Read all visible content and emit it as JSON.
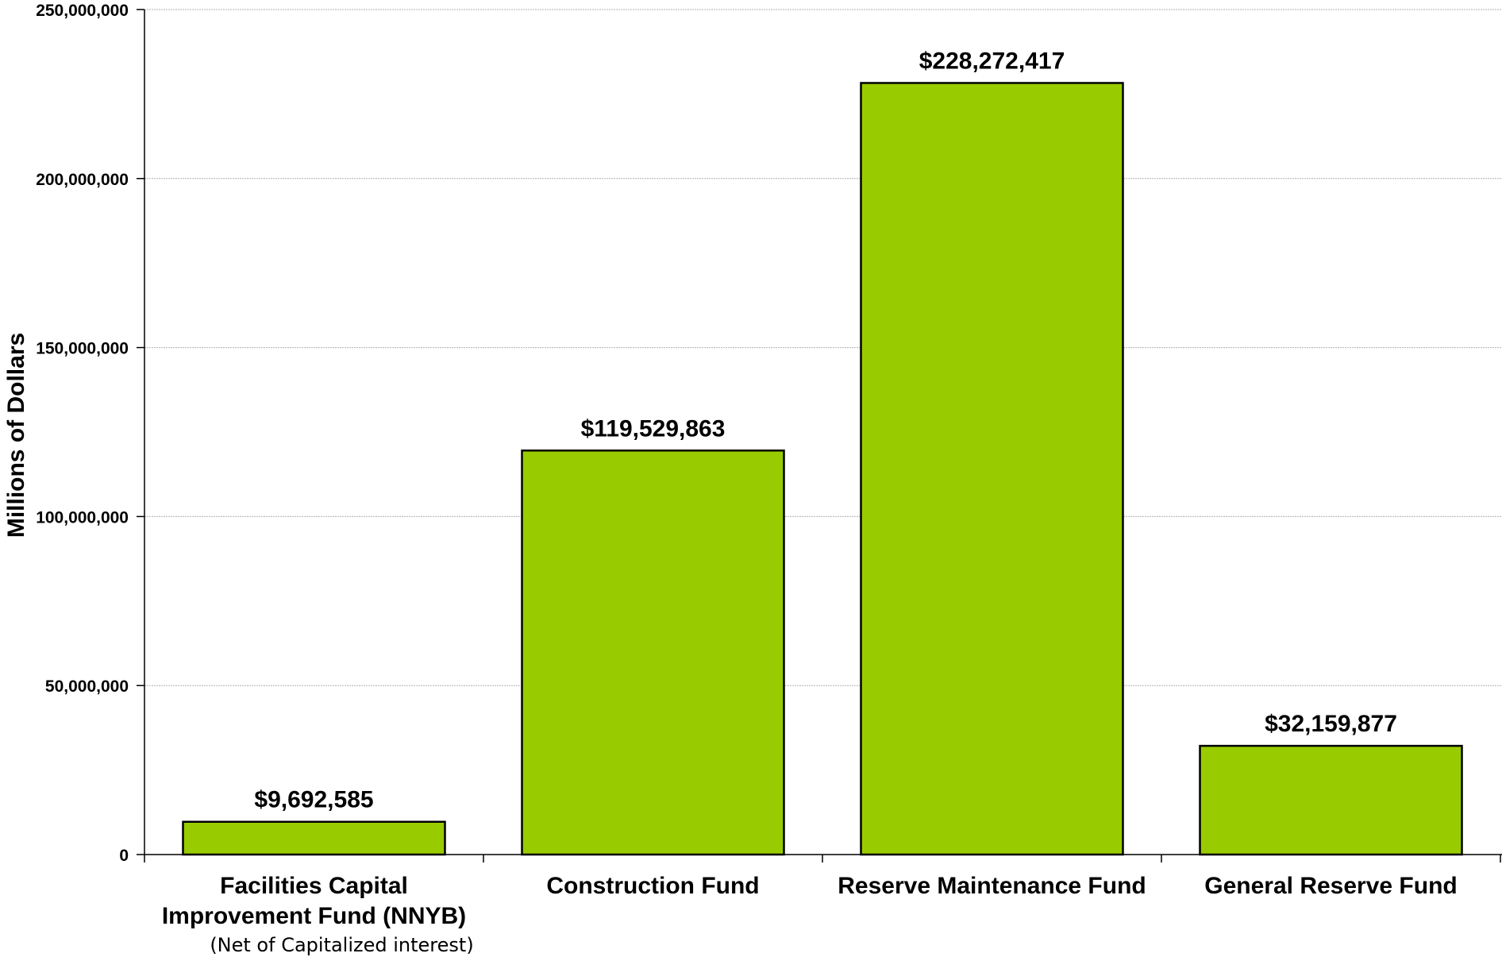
{
  "chart_data": {
    "type": "bar",
    "categories": [
      [
        "Facilities Capital",
        "Improvement Fund (NNYB)"
      ],
      [
        "Construction Fund"
      ],
      [
        "Reserve Maintenance Fund"
      ],
      [
        "General Reserve Fund"
      ]
    ],
    "category_notes": [
      "(Net of Capitalized interest)",
      "",
      "",
      ""
    ],
    "values": [
      9692585,
      119529863,
      228272417,
      32159877
    ],
    "data_labels": [
      "$9,692,585",
      "$119,529,863",
      "$228,272,417",
      "$32,159,877"
    ],
    "ylabel": "Millions of Dollars",
    "ylim": [
      0,
      250000000
    ],
    "yticks": [
      0,
      50000000,
      100000000,
      150000000,
      200000000,
      250000000
    ],
    "ytick_labels": [
      "0",
      "50,000,000",
      "100,000,000",
      "150,000,000",
      "200,000,000",
      "250,000,000"
    ],
    "grid": true,
    "bar_color": "#99cc00",
    "bar_edge_color": "#000000",
    "grid_color": "#b0b0b0"
  }
}
